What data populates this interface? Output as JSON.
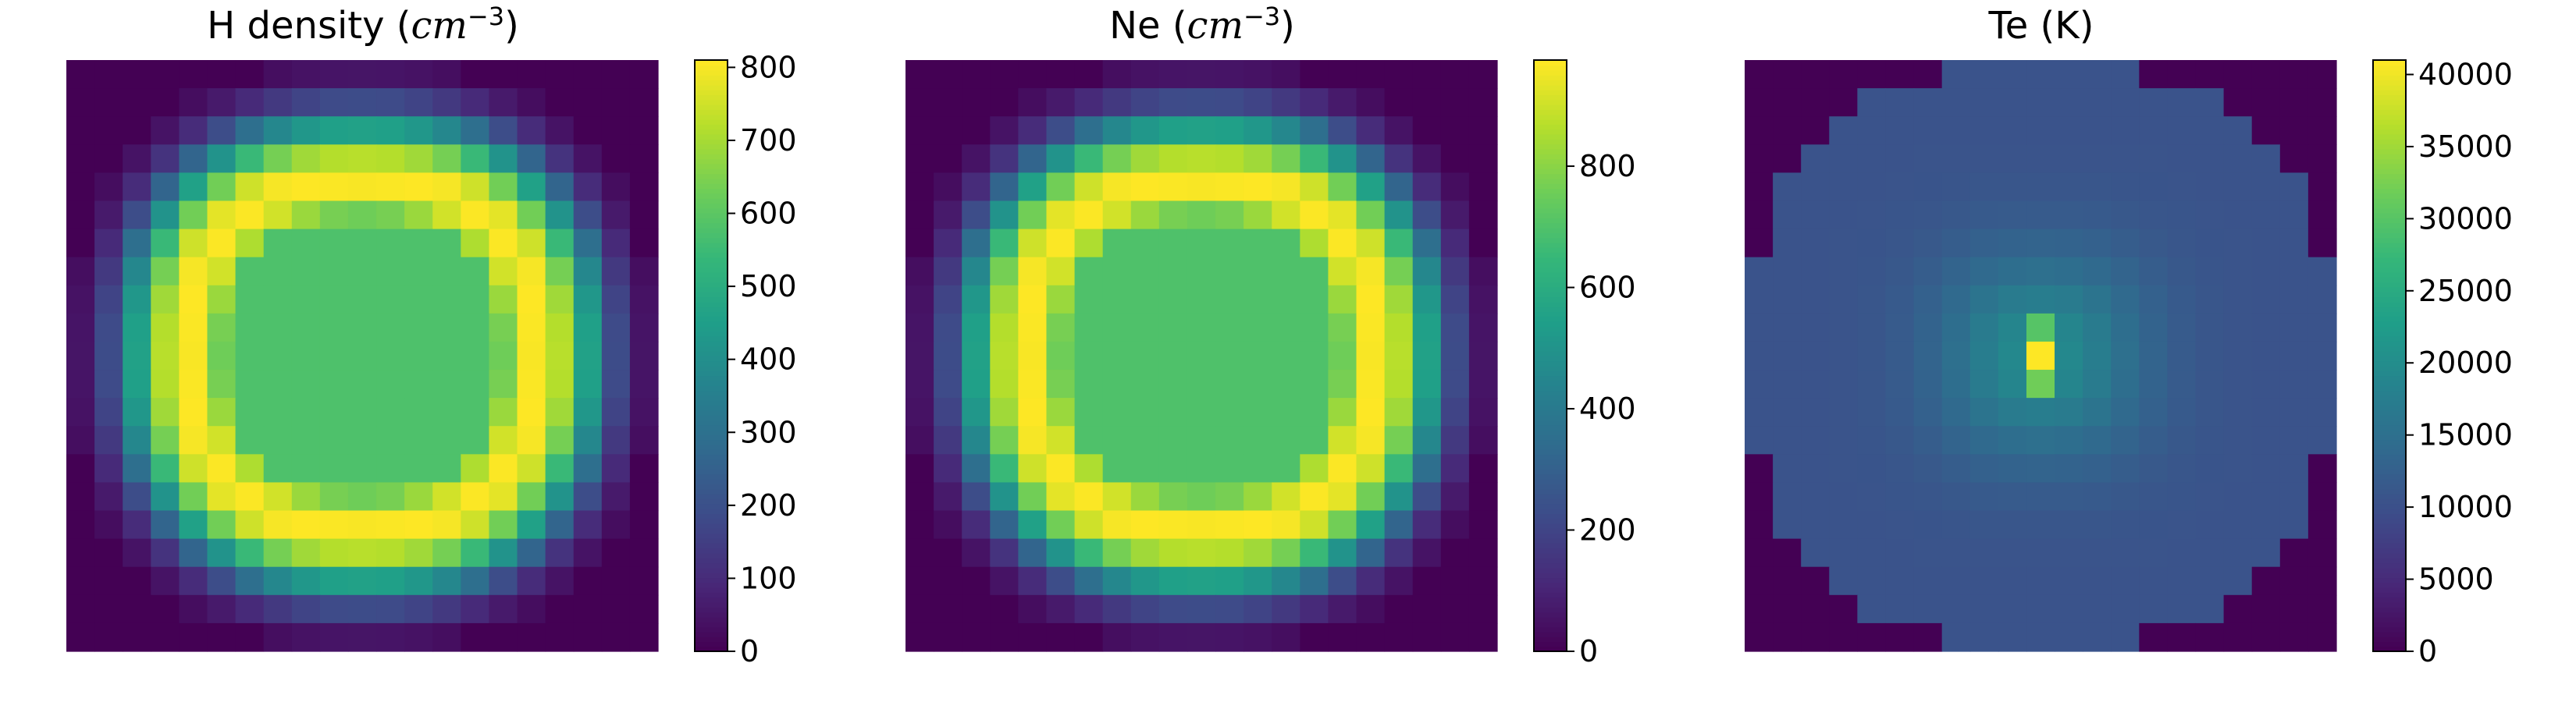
{
  "chart_data": [
    {
      "type": "heatmap",
      "title_prefix": "H density (",
      "title_unit": "cm",
      "title_exp": "−3",
      "title_suffix": ")",
      "grid_size": 21,
      "colorbar": {
        "min": 0,
        "max": 810,
        "ticks": [
          0,
          100,
          200,
          300,
          400,
          500,
          600,
          700,
          800
        ],
        "tick_labels": [
          "0",
          "100",
          "200",
          "300",
          "400",
          "500",
          "600",
          "700",
          "800"
        ]
      },
      "profile": {
        "kind": "shell",
        "peak": 810,
        "center": 580,
        "ring_radius": 6.2,
        "ring_width": 1.7,
        "floor": 560,
        "edge_radius": 10.3
      }
    },
    {
      "type": "heatmap",
      "title_prefix": "Ne (",
      "title_unit": "cm",
      "title_exp": "−3",
      "title_suffix": ")",
      "grid_size": 21,
      "colorbar": {
        "min": 0,
        "max": 975,
        "ticks": [
          0,
          200,
          400,
          600,
          800
        ],
        "tick_labels": [
          "0",
          "200",
          "400",
          "600",
          "800"
        ]
      },
      "profile": {
        "kind": "shell",
        "peak": 975,
        "center": 700,
        "ring_radius": 6.2,
        "ring_width": 1.7,
        "floor": 675,
        "edge_radius": 10.3
      }
    },
    {
      "type": "heatmap",
      "title_prefix": "Te (K)",
      "title_unit": "",
      "title_exp": "",
      "title_suffix": "",
      "grid_size": 21,
      "colorbar": {
        "min": 0,
        "max": 41000,
        "ticks": [
          0,
          5000,
          10000,
          15000,
          20000,
          25000,
          30000,
          35000,
          40000
        ],
        "tick_labels": [
          "0",
          "5000",
          "10000",
          "15000",
          "20000",
          "25000",
          "30000",
          "35000",
          "40000"
        ]
      },
      "profile": {
        "kind": "hotspot",
        "peak": 41000,
        "core": 20000,
        "outer": 10500,
        "edge_radius": 10.3
      }
    }
  ]
}
